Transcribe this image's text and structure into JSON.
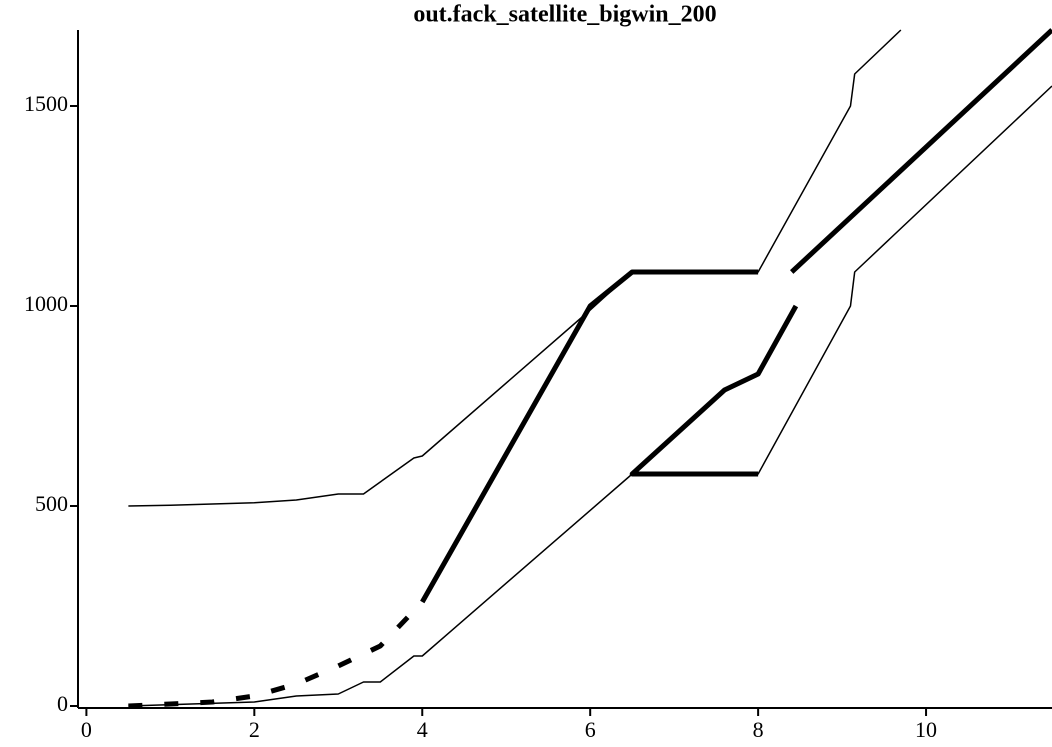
{
  "chart_data": {
    "type": "line",
    "title": "out.fack_satellite_bigwin_200",
    "xlim": [
      -0.1,
      11.5
    ],
    "ylim": [
      -5,
      1690
    ],
    "xticks": [
      0,
      2,
      4,
      6,
      8,
      10
    ],
    "yticks": [
      0,
      500,
      1000,
      1500
    ],
    "series": [
      {
        "color": "#000000",
        "line_width": 1.5,
        "dashed": false,
        "x": [
          0.5,
          1,
          1.5,
          2,
          2.5,
          3,
          3.3,
          3.5,
          3.9,
          4,
          6,
          6.5,
          8,
          9.1,
          9.15,
          9.7
        ],
        "values": [
          500,
          502,
          505,
          508,
          515,
          530,
          530,
          560,
          620,
          625,
          990,
          1085,
          1085,
          1500,
          1580,
          1690
        ]
      },
      {
        "color": "#000000",
        "line_width": 1.5,
        "dashed": false,
        "x": [
          0.5,
          2,
          2.5,
          3,
          3.3,
          3.5,
          3.9,
          4,
          6.5,
          8,
          9.1,
          9.15,
          11.5
        ],
        "values": [
          0,
          10,
          25,
          30,
          60,
          60,
          125,
          125,
          580,
          580,
          1000,
          1085,
          1550
        ]
      },
      {
        "color": "#000000",
        "line_width": 5,
        "dashed": true,
        "x": [
          0.5,
          1,
          1.5,
          2,
          2.5,
          3,
          3.5,
          4
        ],
        "values": [
          0,
          5,
          10,
          25,
          55,
          100,
          150,
          260
        ]
      },
      {
        "color": "#000000",
        "line_width": 5,
        "dashed": false,
        "x": [
          4,
          6,
          6.5,
          8,
          8.2,
          8.4,
          11.5
        ],
        "values": [
          260,
          1000,
          1085,
          1085,
          null,
          1085,
          1690
        ]
      },
      {
        "color": "#000000",
        "line_width": 5,
        "dashed": false,
        "x": [
          8,
          6.5,
          7.6,
          8,
          8.45
        ],
        "values": [
          580,
          580,
          790,
          830,
          1000
        ]
      }
    ]
  }
}
